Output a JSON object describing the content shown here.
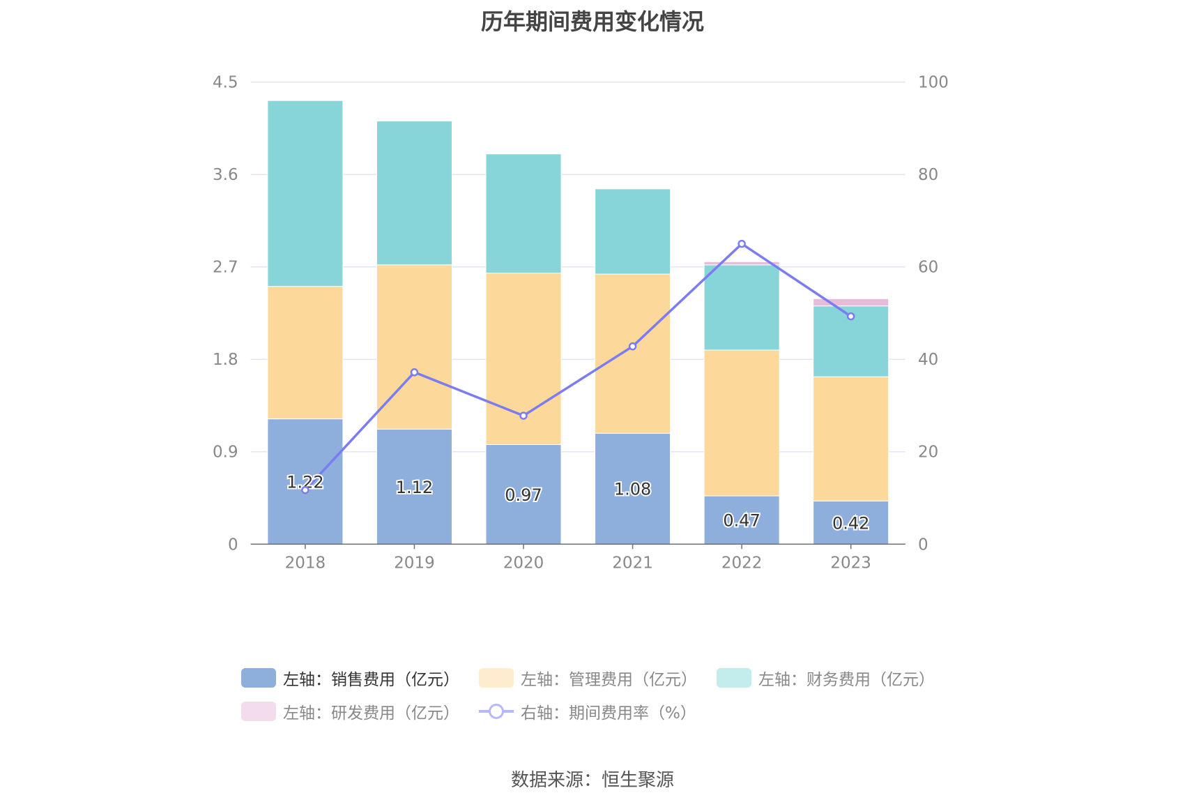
{
  "title": "历年期间费用变化情况",
  "source": "数据来源：恒生聚源",
  "colors": {
    "sales": "#8eaedc",
    "mgmt": "#fdd89b",
    "finance": "#88d5d9",
    "rd": "#e8bbd9",
    "rate": "#7b7cf0",
    "grid": "#e3e6f3",
    "axis_text": "#888888"
  },
  "legend": [
    {
      "label": "左轴：销售费用（亿元）",
      "color": "#8eaedc",
      "type": "box",
      "active": true
    },
    {
      "label": "左轴：管理费用（亿元）",
      "color": "#ffebcd",
      "type": "box",
      "active": false
    },
    {
      "label": "左轴：财务费用（亿元）",
      "color": "#c3ecec",
      "type": "box",
      "active": false
    },
    {
      "label": "左轴：研发费用（亿元）",
      "color": "#f3dcec",
      "type": "box",
      "active": false
    },
    {
      "label": "右轴：期间费用率（%）",
      "color": "#b7b8f7",
      "type": "line",
      "active": false
    }
  ],
  "chart_data": {
    "type": "bar",
    "stacked": true,
    "title": "历年期间费用变化情况",
    "categories": [
      "2018",
      "2019",
      "2020",
      "2021",
      "2022",
      "2023"
    ],
    "y_left": {
      "ticks": [
        "0",
        "0.9",
        "1.8",
        "2.7",
        "3.6",
        "4.5"
      ],
      "range": [
        0,
        4.5
      ]
    },
    "y_right": {
      "ticks": [
        "0",
        "20",
        "40",
        "60",
        "80",
        "100"
      ],
      "range": [
        0,
        100
      ]
    },
    "grid": true,
    "legend_position": "bottom",
    "series": [
      {
        "name": "左轴：销售费用（亿元）",
        "axis": "left",
        "type": "bar",
        "values": [
          1.22,
          1.12,
          0.97,
          1.08,
          0.47,
          0.42
        ],
        "labels": [
          "1.22",
          "1.12",
          "0.97",
          "1.08",
          "0.47",
          "0.42"
        ]
      },
      {
        "name": "左轴：管理费用（亿元）",
        "axis": "left",
        "type": "bar",
        "values": [
          1.29,
          1.6,
          1.67,
          1.55,
          1.42,
          1.21
        ]
      },
      {
        "name": "左轴：财务费用（亿元）",
        "axis": "left",
        "type": "bar",
        "values": [
          1.81,
          1.4,
          1.16,
          0.83,
          0.83,
          0.69
        ]
      },
      {
        "name": "左轴：研发费用（亿元）",
        "axis": "left",
        "type": "bar",
        "values": [
          0,
          0,
          0,
          0,
          0.03,
          0.07
        ]
      },
      {
        "name": "右轴：期间费用率（%）",
        "axis": "right",
        "type": "line",
        "values": [
          11.7,
          37.2,
          27.8,
          42.8,
          65.0,
          49.3
        ]
      }
    ]
  }
}
